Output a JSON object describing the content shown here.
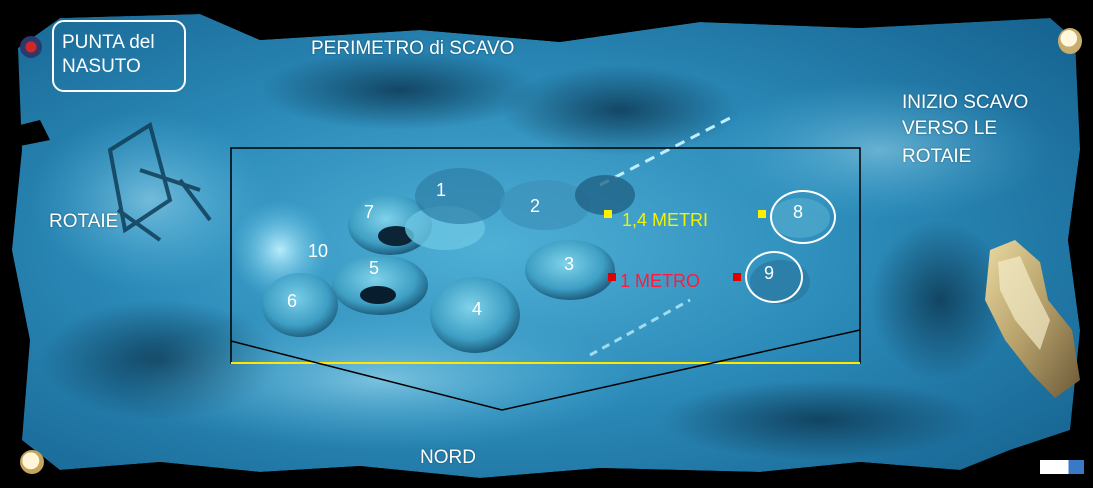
{
  "site": {
    "title_line1": "PUNTA del",
    "title_line2": "NASUTO",
    "perimeter_label": "PERIMETRO di SCAVO",
    "start_label_line1": "INIZIO SCAVO",
    "start_label_line2": "VERSO LE",
    "start_label_line3": "ROTAIE",
    "rails_label": "ROTAIE",
    "north_label": "NORD"
  },
  "distances": [
    {
      "label": "1,4  METRI",
      "color": "#f2f200"
    },
    {
      "label": "1 METRO",
      "color": "#ff1a3c"
    }
  ],
  "finds": [
    "1",
    "2",
    "3",
    "4",
    "5",
    "6",
    "7",
    "8",
    "9",
    "10"
  ],
  "colors": {
    "perimeter_line": "#000000",
    "base_line": "#ffe800",
    "marker_yellow": "#ffef00",
    "marker_red": "#e00000",
    "label_white": "#ffffff"
  }
}
